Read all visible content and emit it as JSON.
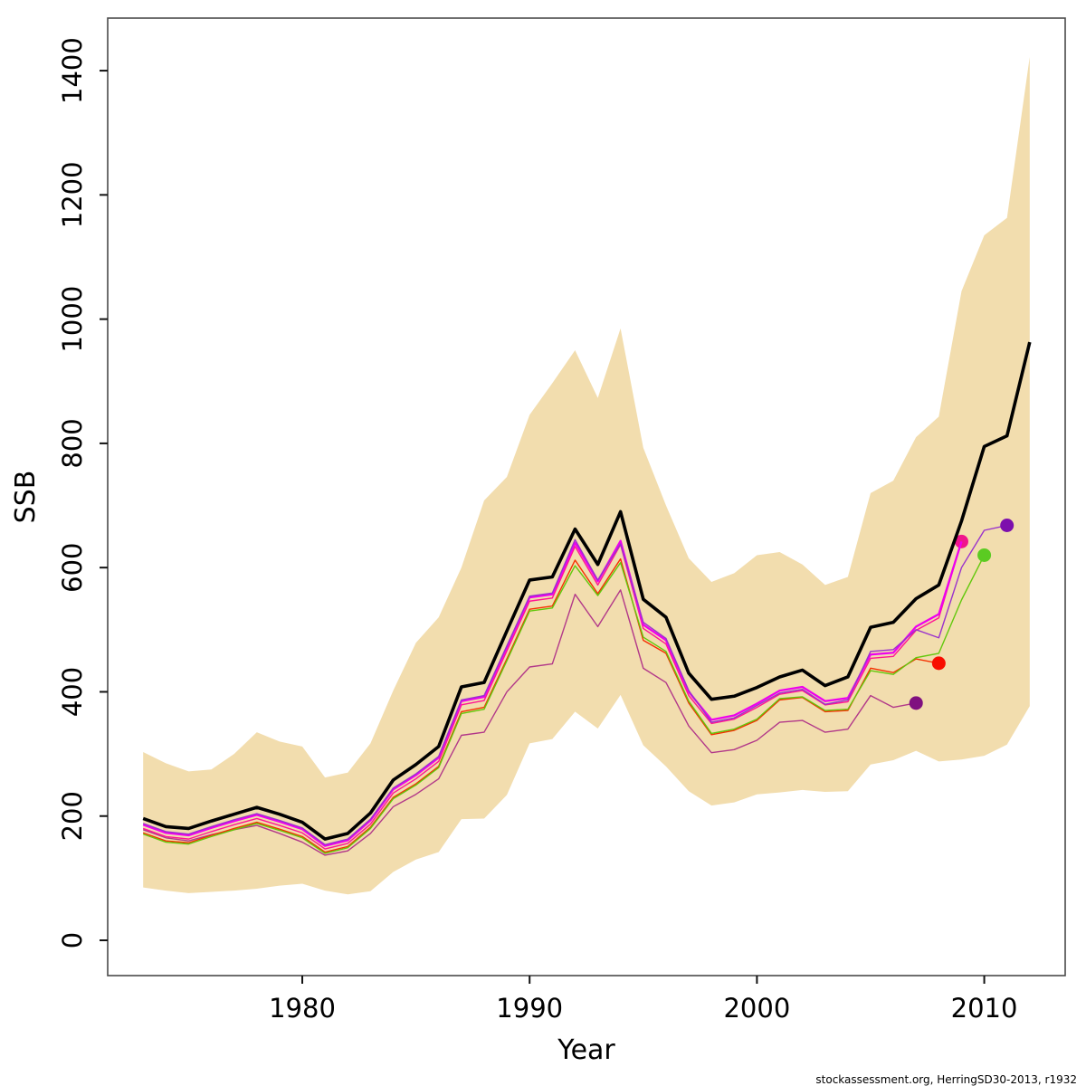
{
  "caption": "stockassessment.org, HerringSD30-2013, r1932",
  "chart_data": {
    "type": "line",
    "title": "",
    "xlabel": "Year",
    "ylabel": "SSB",
    "legend": "none",
    "grid": false,
    "xlim": [
      1971.44,
      2013.56
    ],
    "ylim": [
      -56.8,
      1484.6
    ],
    "x_ticks": [
      1980,
      1990,
      2000,
      2010
    ],
    "y_ticks": [
      0,
      200,
      400,
      600,
      800,
      1000,
      1200,
      1400
    ],
    "years": [
      1973,
      1974,
      1975,
      1976,
      1977,
      1978,
      1979,
      1980,
      1981,
      1982,
      1983,
      1984,
      1985,
      1986,
      1987,
      1988,
      1989,
      1990,
      1991,
      1992,
      1993,
      1994,
      1995,
      1996,
      1997,
      1998,
      1999,
      2000,
      2001,
      2002,
      2003,
      2004,
      2005,
      2006,
      2007,
      2008,
      2009,
      2010,
      2011,
      2012
    ],
    "band": {
      "name": "confidence-band",
      "color": "#F2DDAE",
      "upper": [
        303,
        285,
        272,
        275,
        300,
        335,
        320,
        312,
        262,
        270,
        317,
        402,
        479,
        520,
        600,
        708,
        746,
        846,
        897,
        950,
        873,
        985,
        793,
        700,
        615,
        577,
        591,
        620,
        625,
        605,
        572,
        585,
        720,
        740,
        810,
        843,
        1045,
        1135,
        1163,
        1422
      ],
      "lower": [
        85,
        80,
        76,
        78,
        80,
        83,
        88,
        91,
        80,
        74,
        79,
        110,
        130,
        142,
        195,
        196,
        234,
        317,
        324,
        368,
        341,
        395,
        314,
        280,
        240,
        217,
        222,
        235,
        238,
        242,
        239,
        240,
        283,
        290,
        305,
        288,
        291,
        297,
        315,
        377
      ]
    },
    "series": [
      {
        "name": "retro-2007",
        "color": "#B23889",
        "width": 1.4,
        "dot_color": "#801080",
        "end_year": 2007,
        "values": [
          178,
          165,
          160,
          170,
          178,
          185,
          172,
          158,
          137,
          144,
          172,
          215,
          235,
          260,
          330,
          335,
          400,
          440,
          445,
          557,
          505,
          564,
          438,
          415,
          345,
          302,
          307,
          322,
          351,
          354,
          335,
          340,
          394,
          375,
          382
        ]
      },
      {
        "name": "retro-2008",
        "color": "#F53000",
        "width": 1.4,
        "dot_color": "#F80D00",
        "end_year": 2008,
        "values": [
          173,
          160,
          157,
          169,
          180,
          190,
          179,
          167,
          142,
          151,
          182,
          230,
          252,
          280,
          368,
          375,
          453,
          533,
          538,
          612,
          558,
          614,
          483,
          462,
          382,
          331,
          338,
          354,
          387,
          391,
          368,
          370,
          438,
          431,
          453,
          446
        ]
      },
      {
        "name": "retro-2010",
        "color": "#62C80C",
        "width": 1.4,
        "dot_color": "#5BCB22",
        "end_year": 2010,
        "values": [
          171,
          158,
          155,
          167,
          178,
          188,
          177,
          165,
          140,
          149,
          180,
          228,
          250,
          278,
          365,
          372,
          450,
          530,
          535,
          603,
          555,
          608,
          488,
          465,
          385,
          333,
          340,
          356,
          389,
          392,
          370,
          372,
          434,
          428,
          455,
          462,
          548,
          620
        ]
      },
      {
        "name": "retro-2009-pink",
        "color": "#FF1493",
        "width": 1.4,
        "dot_color": "#F0148C",
        "end_year": 2009,
        "values": [
          180,
          167,
          163,
          175,
          186,
          196,
          185,
          173,
          147,
          156,
          187,
          237,
          260,
          288,
          379,
          386,
          466,
          546,
          551,
          634,
          572,
          637,
          502,
          477,
          394,
          349,
          356,
          375,
          396,
          402,
          379,
          384,
          454,
          457,
          499,
          519,
          642
        ]
      },
      {
        "name": "retro-2009-magenta",
        "color": "#EE00EE",
        "width": 2.3,
        "dot_color": null,
        "end_year": 2009,
        "values": [
          186,
          173,
          169,
          181,
          192,
          202,
          191,
          179,
          152,
          161,
          193,
          243,
          266,
          294,
          385,
          392,
          472,
          552,
          557,
          640,
          578,
          643,
          508,
          483,
          400,
          355,
          362,
          381,
          402,
          408,
          385,
          390,
          460,
          463,
          505,
          525,
          642
        ]
      },
      {
        "name": "retro-2011",
        "color": "#9A32CC",
        "width": 1.4,
        "dot_color": "#7D10AD",
        "end_year": 2011,
        "values": [
          188,
          175,
          171,
          183,
          194,
          204,
          193,
          181,
          154,
          163,
          195,
          245,
          268,
          296,
          387,
          394,
          474,
          554,
          559,
          645,
          580,
          638,
          512,
          486,
          402,
          351,
          358,
          378,
          398,
          404,
          380,
          387,
          465,
          468,
          500,
          487,
          600,
          660,
          668
        ]
      },
      {
        "name": "current-estimate",
        "color": "#000000",
        "width": 3.6,
        "dot_color": null,
        "end_year": 2012,
        "values": [
          196,
          183,
          180,
          192,
          203,
          214,
          203,
          190,
          163,
          172,
          205,
          258,
          283,
          312,
          408,
          415,
          498,
          580,
          585,
          662,
          605,
          690,
          549,
          520,
          430,
          388,
          393,
          407,
          424,
          435,
          410,
          424,
          504,
          512,
          550,
          572,
          675,
          795,
          812,
          963
        ]
      }
    ]
  }
}
